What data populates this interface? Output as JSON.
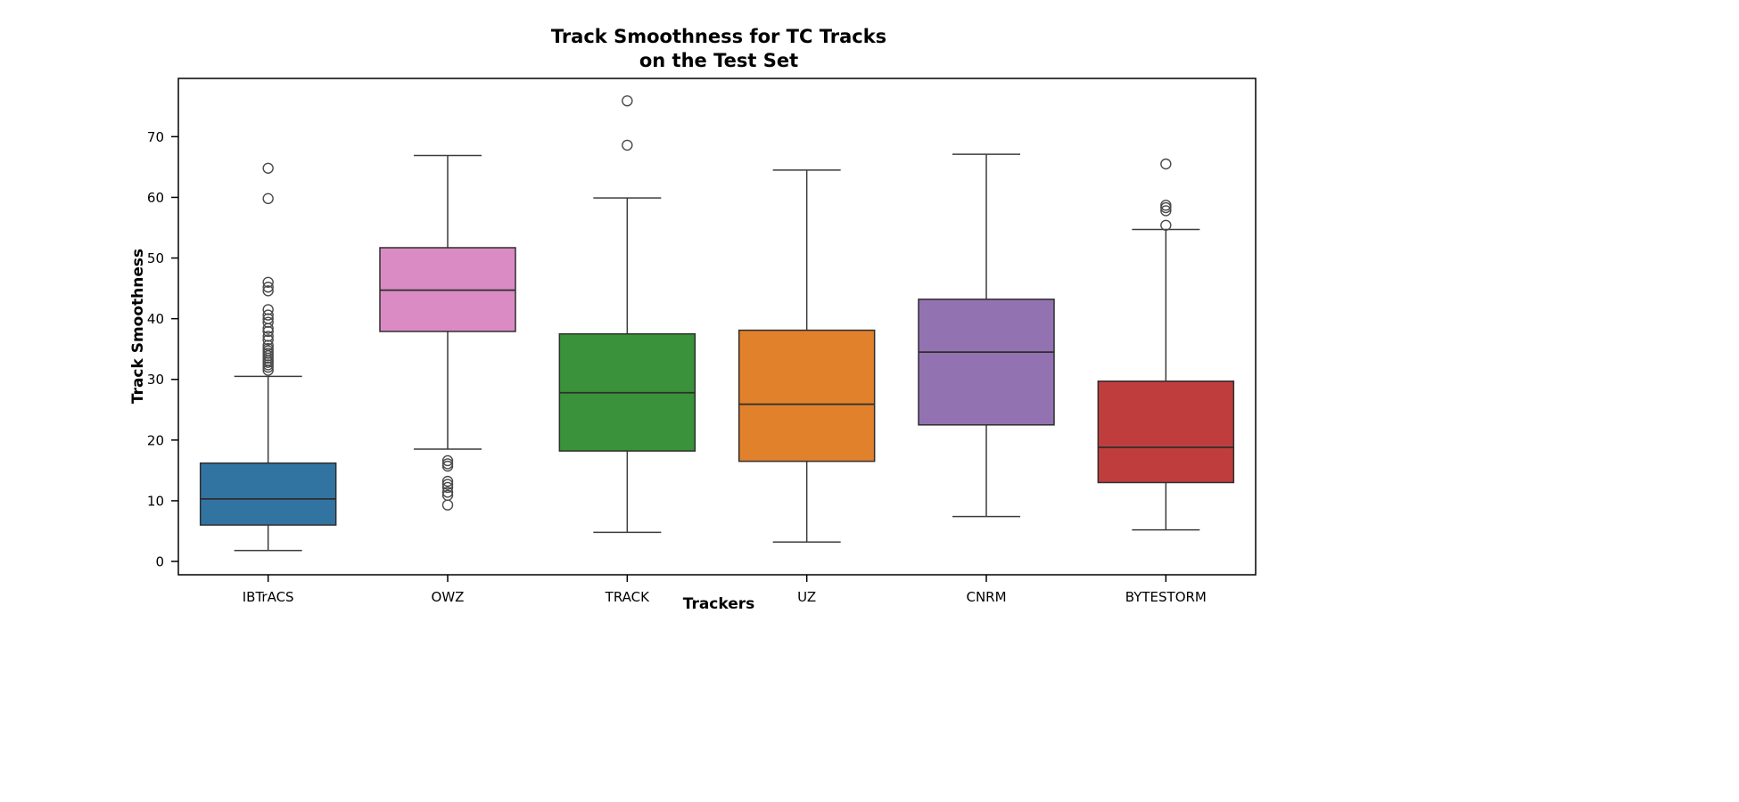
{
  "chart_data": {
    "type": "boxplot",
    "title": "Track Smoothness for TC Tracks\non the Test Set",
    "xlabel": "Trackers",
    "ylabel": "Track Smoothness",
    "ylim": [
      -2.2,
      79.6
    ],
    "yticks": [
      0,
      10,
      20,
      30,
      40,
      50,
      60,
      70
    ],
    "grid": false,
    "legend": "none",
    "categories": [
      "IBTrACS",
      "OWZ",
      "TRACK",
      "UZ",
      "CNRM",
      "BYTESTORM"
    ],
    "boxes": [
      {
        "label": "IBTrACS",
        "color": "#3274A1",
        "whisker_low": 1.8,
        "q1": 6.0,
        "median": 10.3,
        "q3": 16.2,
        "whisker_high": 30.5,
        "outliers": [
          31.5,
          32.0,
          32.4,
          32.8,
          33.1,
          33.5,
          33.9,
          34.3,
          34.7,
          35.1,
          35.6,
          36.5,
          37.1,
          37.9,
          38.4,
          39.4,
          40.0,
          40.6,
          41.5,
          44.6,
          45.2,
          46.0,
          59.8,
          64.8
        ]
      },
      {
        "label": "OWZ",
        "color": "#DA8BC3",
        "whisker_low": 18.5,
        "q1": 37.9,
        "median": 44.7,
        "q3": 51.7,
        "whisker_high": 66.9,
        "outliers": [
          16.6,
          16.1,
          15.7,
          13.2,
          12.7,
          12.2,
          11.4,
          10.9,
          9.3
        ]
      },
      {
        "label": "TRACK",
        "color": "#3A923A",
        "whisker_low": 4.8,
        "q1": 18.2,
        "median": 27.8,
        "q3": 37.5,
        "whisker_high": 59.9,
        "outliers": [
          68.6,
          75.9
        ]
      },
      {
        "label": "UZ",
        "color": "#E1812C",
        "whisker_low": 3.2,
        "q1": 16.5,
        "median": 25.9,
        "q3": 38.1,
        "whisker_high": 64.5,
        "outliers": []
      },
      {
        "label": "CNRM",
        "color": "#9372B2",
        "whisker_low": 7.4,
        "q1": 22.5,
        "median": 34.5,
        "q3": 43.2,
        "whisker_high": 67.1,
        "outliers": []
      },
      {
        "label": "BYTESTORM",
        "color": "#C03D3E",
        "whisker_low": 5.2,
        "q1": 13.0,
        "median": 18.8,
        "q3": 29.7,
        "whisker_high": 54.7,
        "outliers": [
          55.4,
          57.8,
          58.3,
          58.7,
          65.5
        ]
      }
    ],
    "style": {
      "box_edge_color": "#2e2e2e",
      "whisker_color": "#3b3b3b",
      "outlier_stroke": "#4a4a4a",
      "frame_color": "#000000"
    }
  }
}
